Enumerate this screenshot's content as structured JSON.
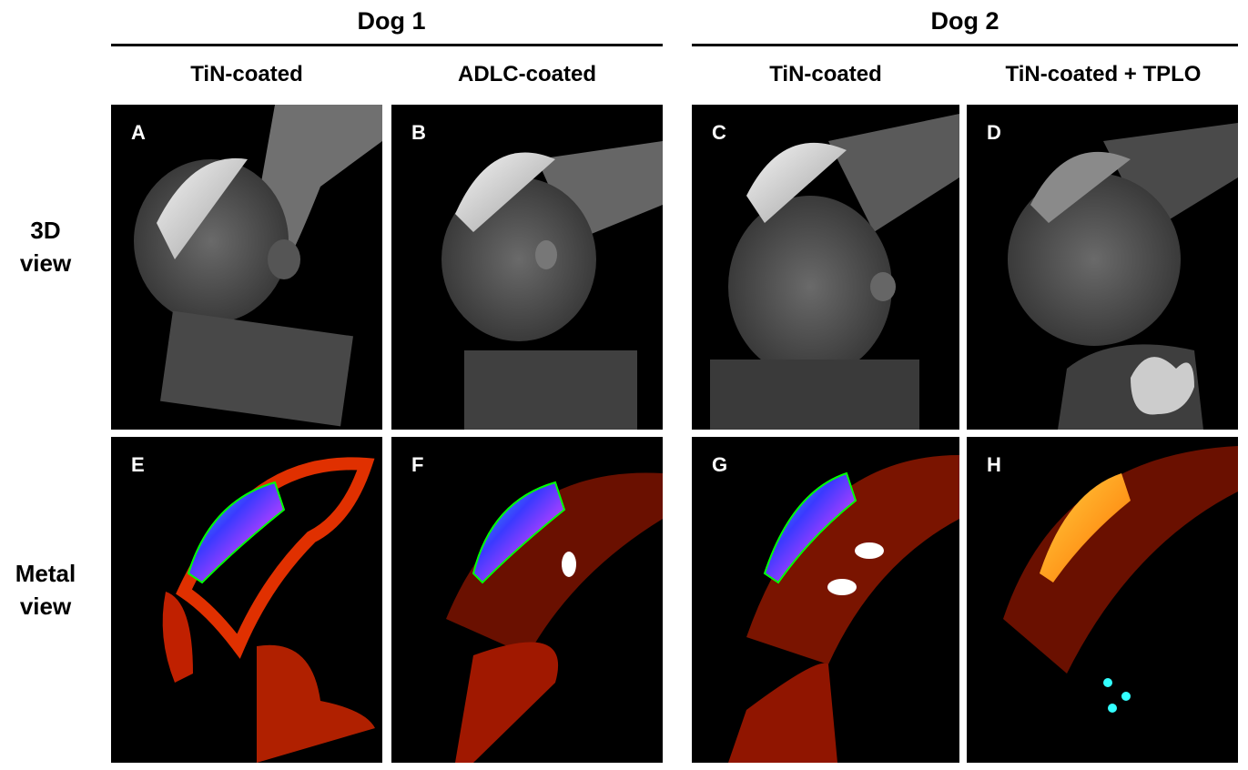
{
  "groups": [
    {
      "label": "Dog 1"
    },
    {
      "label": "Dog 2"
    }
  ],
  "columns": [
    {
      "label": "TiN-coated"
    },
    {
      "label": "ADLC-coated"
    },
    {
      "label": "TiN-coated"
    },
    {
      "label": "TiN-coated + TPLO"
    }
  ],
  "rows": [
    {
      "label_line1": "3D",
      "label_line2": "view"
    },
    {
      "label_line1": "Metal",
      "label_line2": "view"
    }
  ],
  "panels": {
    "A": {
      "label": "A",
      "view": "3d"
    },
    "B": {
      "label": "B",
      "view": "3d"
    },
    "C": {
      "label": "C",
      "view": "3d"
    },
    "D": {
      "label": "D",
      "view": "3d"
    },
    "E": {
      "label": "E",
      "view": "metal"
    },
    "F": {
      "label": "F",
      "view": "metal"
    },
    "G": {
      "label": "G",
      "view": "metal"
    },
    "H": {
      "label": "H",
      "view": "metal"
    }
  }
}
